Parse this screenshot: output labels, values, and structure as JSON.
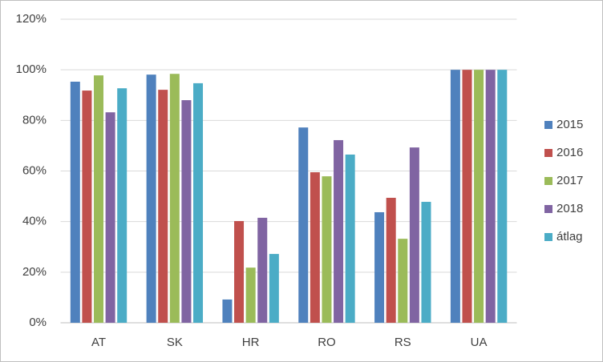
{
  "chart_data": {
    "type": "bar",
    "categories": [
      "AT",
      "SK",
      "HR",
      "RO",
      "RS",
      "UA"
    ],
    "series": [
      {
        "name": "2015",
        "color": "#4f81bd",
        "values": [
          95.3,
          98.1,
          9.2,
          77.2,
          43.7,
          100
        ]
      },
      {
        "name": "2016",
        "color": "#c0504d",
        "values": [
          91.8,
          92.1,
          40.2,
          59.5,
          49.4,
          100
        ]
      },
      {
        "name": "2017",
        "color": "#9bbb59",
        "values": [
          97.8,
          98.4,
          21.8,
          57.9,
          33.2,
          100
        ]
      },
      {
        "name": "2018",
        "color": "#8064a2",
        "values": [
          83.2,
          88,
          41.5,
          72.2,
          69.3,
          100
        ]
      },
      {
        "name": "átlag",
        "color": "#4bacc6",
        "values": [
          92.7,
          94.7,
          27.2,
          66.5,
          47.8,
          100
        ]
      }
    ],
    "ylim": [
      0,
      120
    ],
    "yticks": [
      {
        "value": 0,
        "label": "0%"
      },
      {
        "value": 20,
        "label": "20%"
      },
      {
        "value": 40,
        "label": "40%"
      },
      {
        "value": 60,
        "label": "60%"
      },
      {
        "value": 80,
        "label": "80%"
      },
      {
        "value": 100,
        "label": "100%"
      },
      {
        "value": 120,
        "label": "120%"
      }
    ],
    "grid": true,
    "legend": "right"
  }
}
